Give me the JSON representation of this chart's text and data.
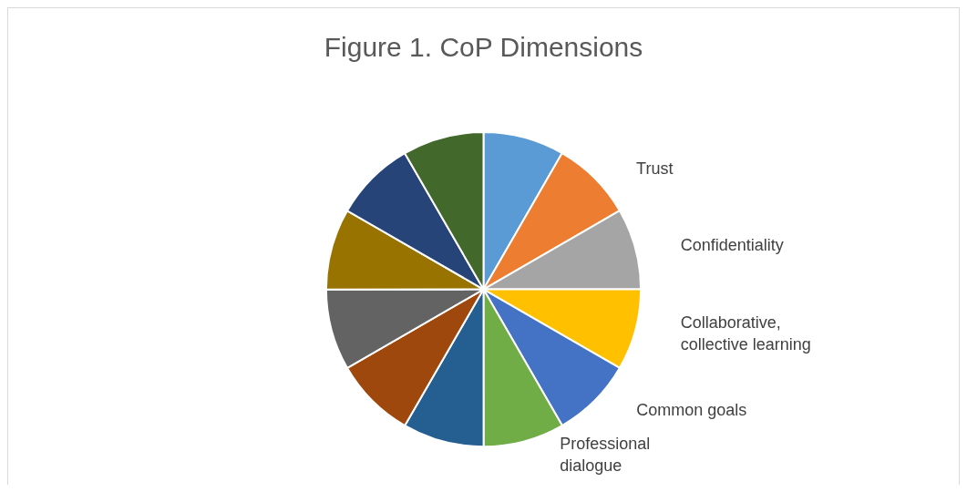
{
  "chart_data": {
    "type": "pie",
    "title": "Figure 1. CoP Dimensions",
    "categories": [
      null,
      "Trust",
      "Confidentiality",
      "Collaborative, collective learning",
      "Common goals",
      "Professional dialogue",
      null,
      null,
      null,
      null,
      null,
      null
    ],
    "values": [
      8.33,
      8.33,
      8.33,
      8.34,
      8.33,
      8.33,
      8.34,
      8.33,
      8.33,
      8.34,
      8.33,
      8.34
    ],
    "colors": [
      "#5b9bd5",
      "#ed7d31",
      "#a5a5a5",
      "#ffc000",
      "#4472c4",
      "#70ad47",
      "#255e91",
      "#9e480e",
      "#636363",
      "#997300",
      "#264478",
      "#43682b"
    ],
    "legend": false
  }
}
